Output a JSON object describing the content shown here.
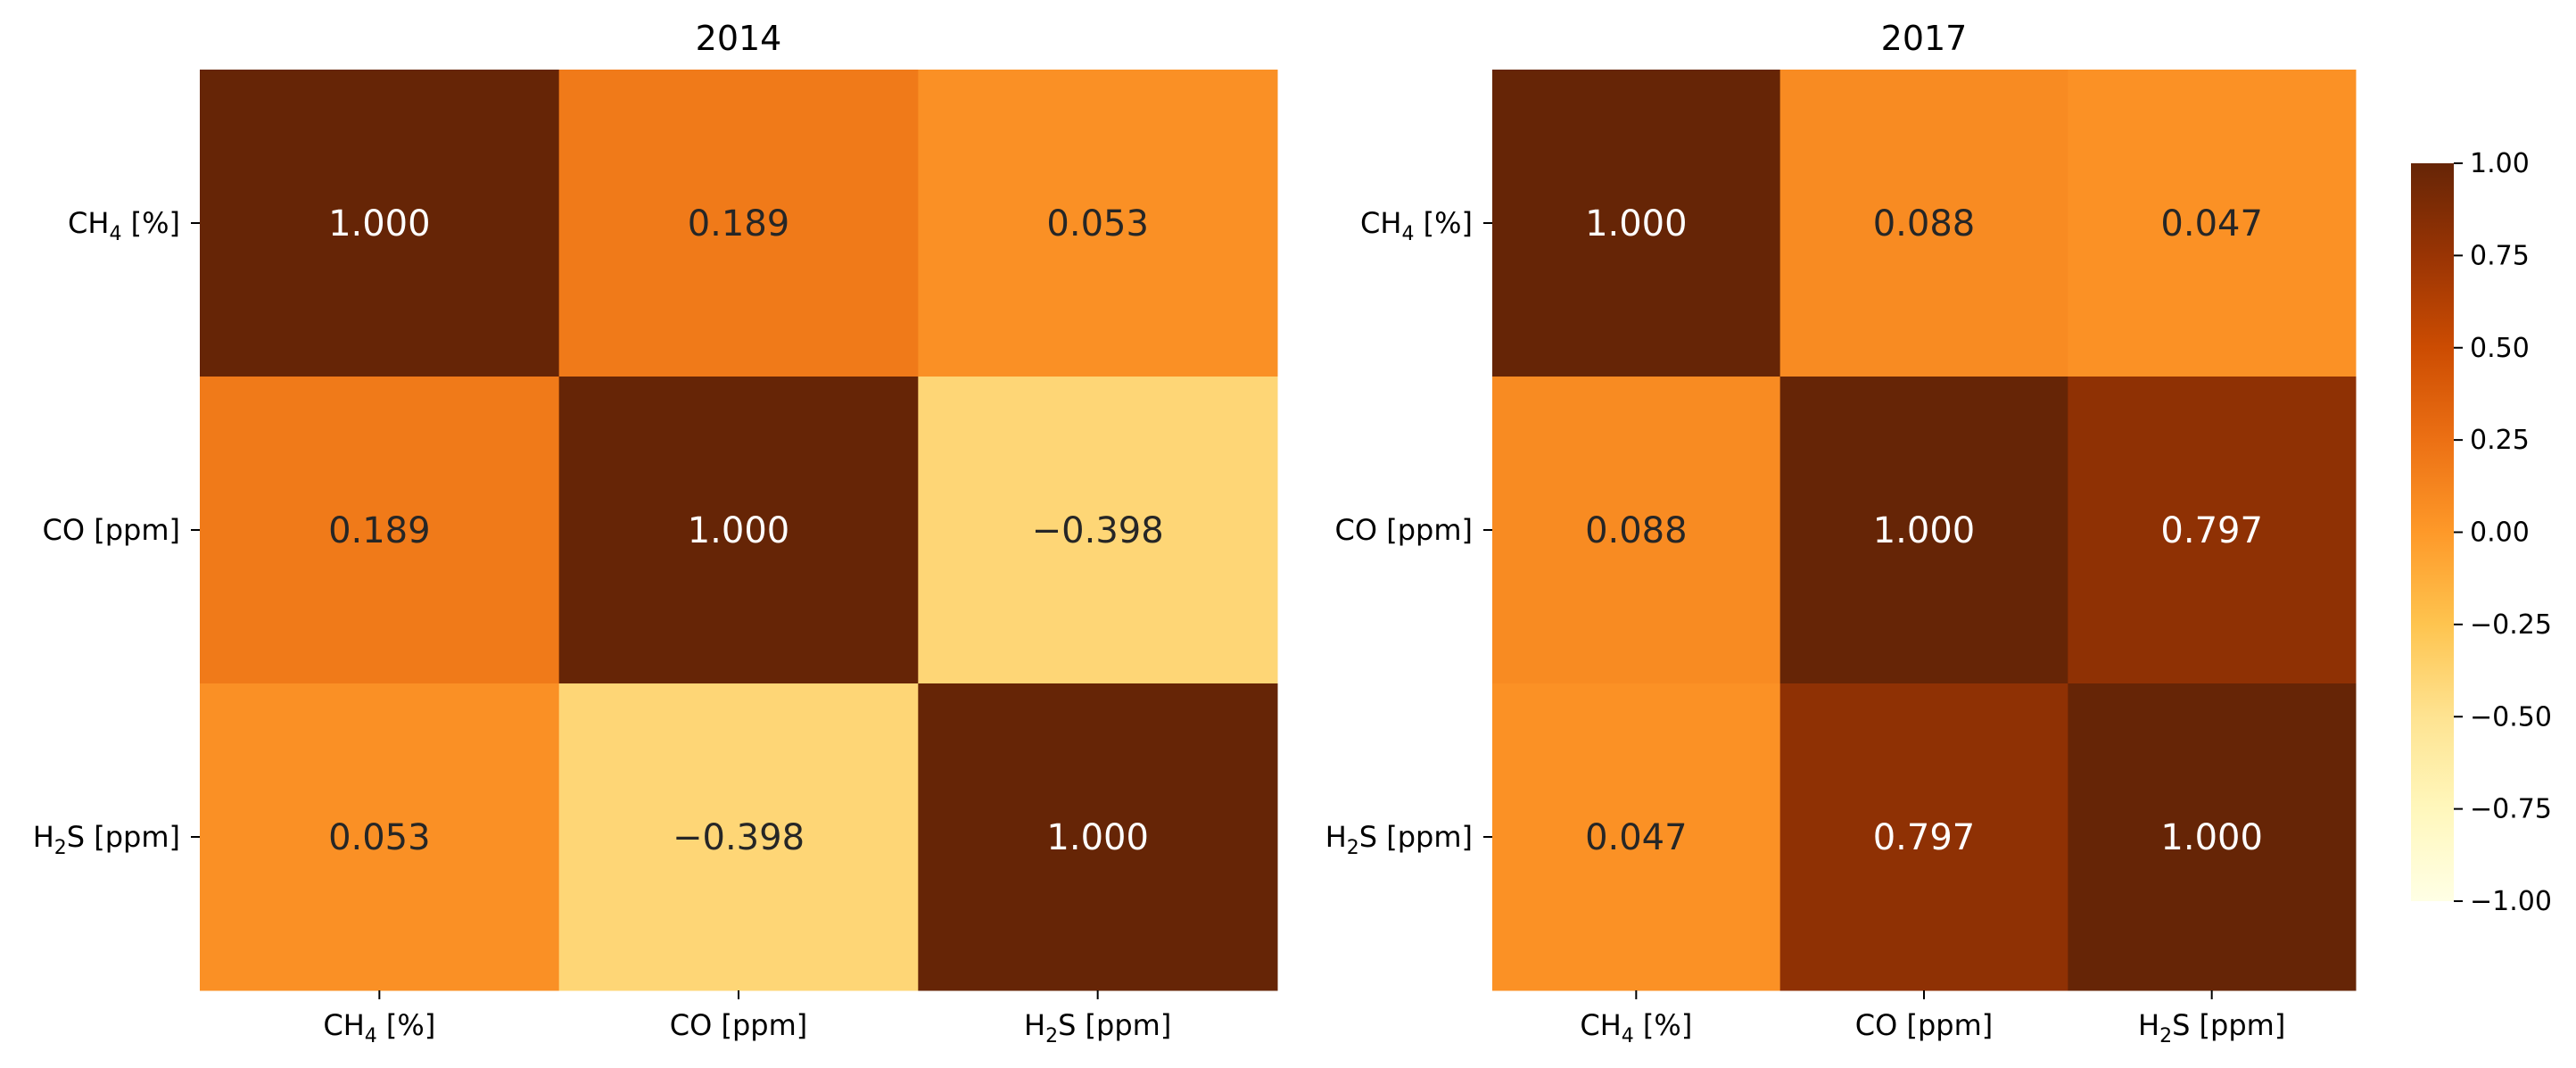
{
  "chart_data": [
    {
      "type": "heatmap",
      "title": "2014",
      "row_labels": [
        {
          "base": "CH",
          "sub": "4",
          "rest": " [%]"
        },
        {
          "base": "CO [ppm]",
          "sub": "",
          "rest": ""
        },
        {
          "base": "H",
          "sub": "2",
          "rest": "S [ppm]"
        }
      ],
      "col_labels": [
        {
          "base": "CH",
          "sub": "4",
          "rest": " [%]"
        },
        {
          "base": "CO [ppm]",
          "sub": "",
          "rest": ""
        },
        {
          "base": "H",
          "sub": "2",
          "rest": "S [ppm]"
        }
      ],
      "values": [
        [
          1.0,
          0.189,
          0.053
        ],
        [
          0.189,
          1.0,
          -0.398
        ],
        [
          0.053,
          -0.398,
          1.0
        ]
      ],
      "labels": [
        [
          "1.000",
          "0.189",
          "0.053"
        ],
        [
          "0.189",
          "1.000",
          "−0.398"
        ],
        [
          "0.053",
          "−0.398",
          "1.000"
        ]
      ]
    },
    {
      "type": "heatmap",
      "title": "2017",
      "row_labels": [
        {
          "base": "CH",
          "sub": "4",
          "rest": " [%]"
        },
        {
          "base": "CO [ppm]",
          "sub": "",
          "rest": ""
        },
        {
          "base": "H",
          "sub": "2",
          "rest": "S [ppm]"
        }
      ],
      "col_labels": [
        {
          "base": "CH",
          "sub": "4",
          "rest": " [%]"
        },
        {
          "base": "CO [ppm]",
          "sub": "",
          "rest": ""
        },
        {
          "base": "H",
          "sub": "2",
          "rest": "S [ppm]"
        }
      ],
      "values": [
        [
          1.0,
          0.088,
          0.047
        ],
        [
          0.088,
          1.0,
          0.797
        ],
        [
          0.047,
          0.797,
          1.0
        ]
      ],
      "labels": [
        [
          "1.000",
          "0.088",
          "0.047"
        ],
        [
          "0.088",
          "1.000",
          "0.797"
        ],
        [
          "0.047",
          "0.797",
          "1.000"
        ]
      ]
    }
  ],
  "colorbar": {
    "vmin": -1.0,
    "vmax": 1.0,
    "colormap": "YlOrBr",
    "ticks": [
      1.0,
      0.75,
      0.5,
      0.25,
      0.0,
      -0.25,
      -0.5,
      -0.75,
      -1.0
    ],
    "tick_labels": [
      "1.00",
      "0.75",
      "0.50",
      "0.25",
      "0.00",
      "−0.25",
      "−0.50",
      "−0.75",
      "−1.00"
    ]
  },
  "colors": {
    "stops": [
      "#ffffe5",
      "#fff7bc",
      "#fee391",
      "#fec44f",
      "#fe9929",
      "#ec7014",
      "#cc4c02",
      "#993404",
      "#662506"
    ]
  }
}
